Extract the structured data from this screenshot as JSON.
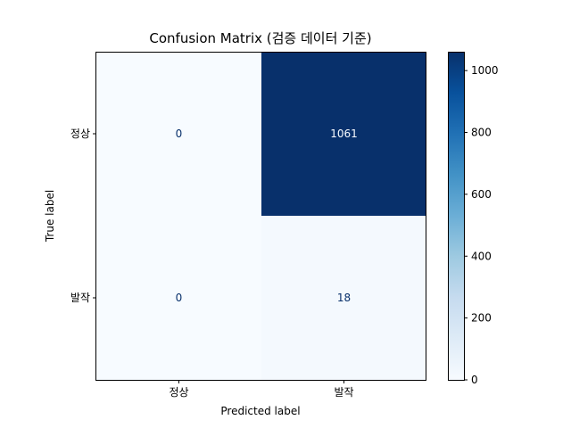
{
  "chart_data": {
    "type": "heatmap",
    "title": "Confusion Matrix (검증 데이터 기준)",
    "xlabel": "Predicted label",
    "ylabel": "True label",
    "x_categories": [
      "정상",
      "발작"
    ],
    "y_categories": [
      "정상",
      "발작"
    ],
    "values": [
      [
        0,
        1061
      ],
      [
        0,
        18
      ]
    ],
    "colormap": "Blues",
    "colors": {
      "low": "#f7fbff",
      "high": "#08306b",
      "text_on_light": "#08306b",
      "text_on_dark": "#f7fbff"
    },
    "colorbar": {
      "range": [
        0,
        1061
      ],
      "ticks": [
        "0",
        "200",
        "400",
        "600",
        "800",
        "1000"
      ]
    }
  }
}
